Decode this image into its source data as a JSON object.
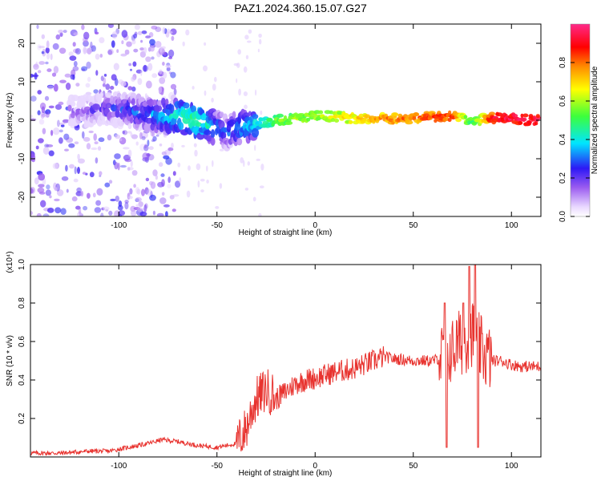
{
  "title": "PAZ1.2024.360.15.07.G27",
  "chart_data": [
    {
      "type": "heatmap",
      "xlabel": "Height of straight line (km)",
      "ylabel": "Frequency (Hz)",
      "xlim": [
        -145,
        115
      ],
      "ylim": [
        -25,
        25
      ],
      "xticks": [
        -100,
        -50,
        0,
        50,
        100
      ],
      "yticks": [
        -20,
        -10,
        0,
        10,
        20
      ],
      "colorbar": {
        "label": "Normalized spectral amplitude",
        "range": [
          0,
          1
        ],
        "ticks": [
          0.0,
          0.2,
          0.4,
          0.6,
          0.8
        ],
        "tick_labels": [
          "0.0",
          "0.2",
          "0.4",
          "0.6",
          "0.8"
        ]
      },
      "ridge": {
        "x": [
          -120,
          -110,
          -100,
          -90,
          -80,
          -70,
          -60,
          -50,
          -45,
          -40,
          -30,
          -20,
          -10,
          0,
          10,
          20,
          30,
          40,
          50,
          60,
          70,
          80,
          90,
          100,
          110
        ],
        "frequency": [
          2,
          3,
          3,
          2,
          1,
          1,
          0,
          -2,
          -3,
          -2,
          -1,
          0,
          0.5,
          1,
          1,
          0.5,
          0.5,
          0.5,
          0.5,
          1,
          1,
          0,
          0.5,
          0.5,
          0
        ],
        "amplitude": [
          0.15,
          0.2,
          0.25,
          0.3,
          0.35,
          0.45,
          0.5,
          0.35,
          0.3,
          0.35,
          0.4,
          0.55,
          0.6,
          0.6,
          0.65,
          0.7,
          0.75,
          0.8,
          0.8,
          0.85,
          0.85,
          0.5,
          0.9,
          0.95,
          0.95
        ]
      }
    },
    {
      "type": "line",
      "xlabel": "Height of straight line (km)",
      "ylabel": "SNR (10 * v/v)",
      "y_multiplier": "(x10⁴)",
      "xlim": [
        -145,
        115
      ],
      "ylim": [
        0,
        1.0
      ],
      "xticks": [
        -100,
        -50,
        0,
        50,
        100
      ],
      "yticks": [
        0.2,
        0.4,
        0.6,
        0.8,
        1.0
      ],
      "ytick_labels": [
        "0.2",
        "0.4",
        "0.6",
        "0.8",
        "1.0"
      ],
      "color": "#e8332f",
      "series": [
        {
          "x": [
            -145,
            -130,
            -115,
            -105,
            -95,
            -85,
            -78,
            -70,
            -60,
            -50,
            -45,
            -40,
            -35,
            -32,
            -30,
            -28,
            -25,
            -22,
            -20,
            -15,
            -10,
            -5,
            0,
            10,
            20,
            30,
            35,
            40,
            50,
            60,
            65,
            68,
            70,
            72,
            75,
            78,
            80,
            82,
            85,
            88,
            90,
            95,
            100,
            105,
            110,
            115
          ],
          "y": [
            0.02,
            0.02,
            0.03,
            0.03,
            0.05,
            0.07,
            0.09,
            0.08,
            0.06,
            0.05,
            0.06,
            0.07,
            0.15,
            0.25,
            0.3,
            0.32,
            0.35,
            0.33,
            0.3,
            0.34,
            0.38,
            0.4,
            0.41,
            0.44,
            0.46,
            0.5,
            0.52,
            0.51,
            0.5,
            0.5,
            0.52,
            0.55,
            0.55,
            0.58,
            0.6,
            0.62,
            0.65,
            0.6,
            0.55,
            0.52,
            0.5,
            0.5,
            0.48,
            0.47,
            0.47,
            0.47
          ]
        }
      ]
    }
  ]
}
